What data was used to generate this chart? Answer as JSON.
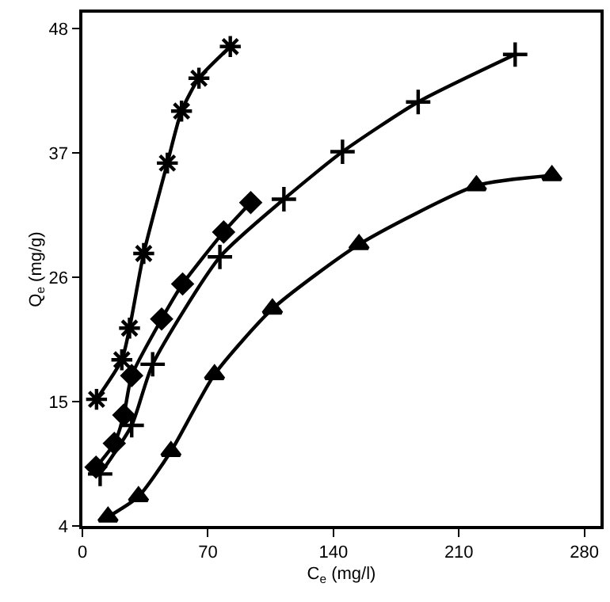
{
  "chart_data": {
    "type": "line",
    "xlabel": "C$_{e}$ (mg/l)",
    "ylabel": "Q$_{e}$ (mg/g)",
    "xlim": [
      0,
      289
    ],
    "xticks": [
      0,
      70,
      140,
      210,
      280
    ],
    "ylim": [
      4,
      49.4
    ],
    "yticks": [
      4,
      15,
      26,
      37,
      48
    ],
    "line_style": "solid",
    "series": [
      {
        "color": "#000000",
        "marker": "cross",
        "x": [
          7.9,
          22,
          26.3,
          34.2,
          47.4,
          55.3,
          65,
          82.5
        ],
        "values": [
          15.2,
          18.7,
          21.5,
          28.1,
          36.1,
          40.7,
          43.6,
          46.4
        ]
      },
      {
        "color": "#000000",
        "marker": "diamond",
        "x": [
          7.6,
          17.8,
          23.1,
          27.5,
          44.2,
          55.9,
          78.8,
          93.9
        ],
        "values": [
          9.2,
          11.3,
          13.8,
          17.3,
          22.3,
          25.4,
          30.0,
          32.6
        ]
      },
      {
        "color": "#000000",
        "marker": "cross",
        "x": [
          9.9,
          27.5,
          39.2,
          76.7,
          112.4,
          145.1,
          187.3,
          241.4
        ],
        "values": [
          8.6,
          12.9,
          18.3,
          27.8,
          32.9,
          37.1,
          41.5,
          45.7
        ]
      },
      {
        "color": "#000000",
        "marker": "triangle",
        "x": [
          14.3,
          31.3,
          49.4,
          73.7,
          106,
          154.3,
          219.8,
          261.9
        ],
        "values": [
          4.8,
          6.6,
          10.6,
          17.4,
          23.2,
          28.9,
          34.1,
          35.0
        ]
      }
    ]
  }
}
